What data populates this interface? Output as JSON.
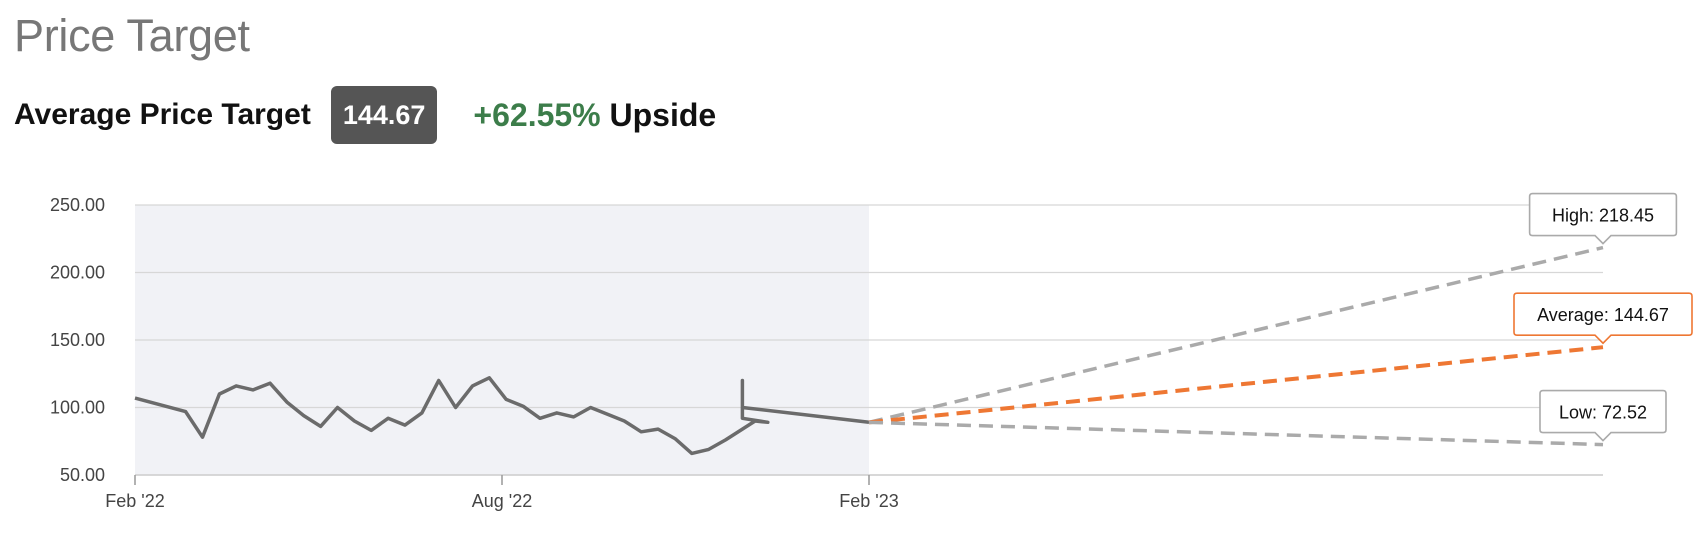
{
  "header": {
    "title": "Price Target",
    "average_label": "Average Price Target",
    "average_value": "144.67",
    "upside_pct": "+62.55%",
    "upside_word": "Upside"
  },
  "colors": {
    "price_line": "#6b6b6b",
    "history_bg": "#f1f2f6",
    "high_low_line": "#aaaaaa",
    "average_line": "#ee7733",
    "upside_green": "#3c7d4a"
  },
  "chart_data": {
    "type": "line",
    "title": "",
    "xlabel": "",
    "ylabel": "",
    "ylim": [
      50,
      250
    ],
    "y_ticks": [
      "250.00",
      "200.00",
      "150.00",
      "100.00",
      "50.00"
    ],
    "x_ticks": [
      "Feb '22",
      "Aug '22",
      "Feb '23"
    ],
    "grid": true,
    "x_range_months": [
      "Feb '22",
      "Feb '24"
    ],
    "series": [
      {
        "values_by_month": [
          [
            "Feb '22",
            107
          ],
          [
            "Feb '22",
            102
          ],
          [
            "Mar '22",
            97
          ],
          [
            "Mar '22",
            78
          ],
          [
            "Mar '22",
            110
          ],
          [
            "Apr '22",
            116
          ],
          [
            "Apr '22",
            113
          ],
          [
            "Apr '22",
            118
          ],
          [
            "May '22",
            104
          ],
          [
            "May '22",
            94
          ],
          [
            "May '22",
            86
          ],
          [
            "Jun '22",
            100
          ],
          [
            "Jun '22",
            90
          ],
          [
            "Jun '22",
            83
          ],
          [
            "Jul '22",
            92
          ],
          [
            "Jul '22",
            87
          ],
          [
            "Jul '22",
            96
          ],
          [
            "Aug '22",
            120
          ],
          [
            "Aug '22",
            100
          ],
          [
            "Aug '22",
            116
          ],
          [
            "Sep '22",
            122
          ],
          [
            "Sep '22",
            106
          ],
          [
            "Sep '22",
            101
          ],
          [
            "Oct '22",
            92
          ],
          [
            "Oct '22",
            96
          ],
          [
            "Oct '22",
            93
          ],
          [
            "Nov '22",
            100
          ],
          [
            "Nov '22",
            95
          ],
          [
            "Nov '22",
            90
          ],
          [
            "Dec '22",
            82
          ],
          [
            "Dec '22",
            84
          ],
          [
            "Dec '22",
            77
          ],
          [
            "Jan '23",
            66
          ],
          [
            "Jan '23",
            69
          ],
          [
            "Jan '23",
            76
          ],
          [
            "Feb '23",
            84
          ],
          [
            "Feb '23",
            90
          ],
          [
            "Feb '23",
            89
          ],
          [
            "Mar '23",
            92
          ],
          [
            "Mar '23",
            110
          ],
          [
            "Mar '23",
            120
          ],
          [
            "Apr '23",
            118
          ],
          [
            "Apr '23",
            105
          ],
          [
            "Apr '23",
            100
          ],
          [
            "Feb '23",
            89
          ]
        ]
      }
    ],
    "targets": [
      {
        "label": "High: 218.45",
        "value": 218.45,
        "color": "#aaaaaa"
      },
      {
        "label": "Average: 144.67",
        "value": 144.67,
        "color": "#ee7733"
      },
      {
        "label": "Low: 72.52",
        "value": 72.52,
        "color": "#aaaaaa"
      }
    ],
    "target_start_value": 89
  }
}
